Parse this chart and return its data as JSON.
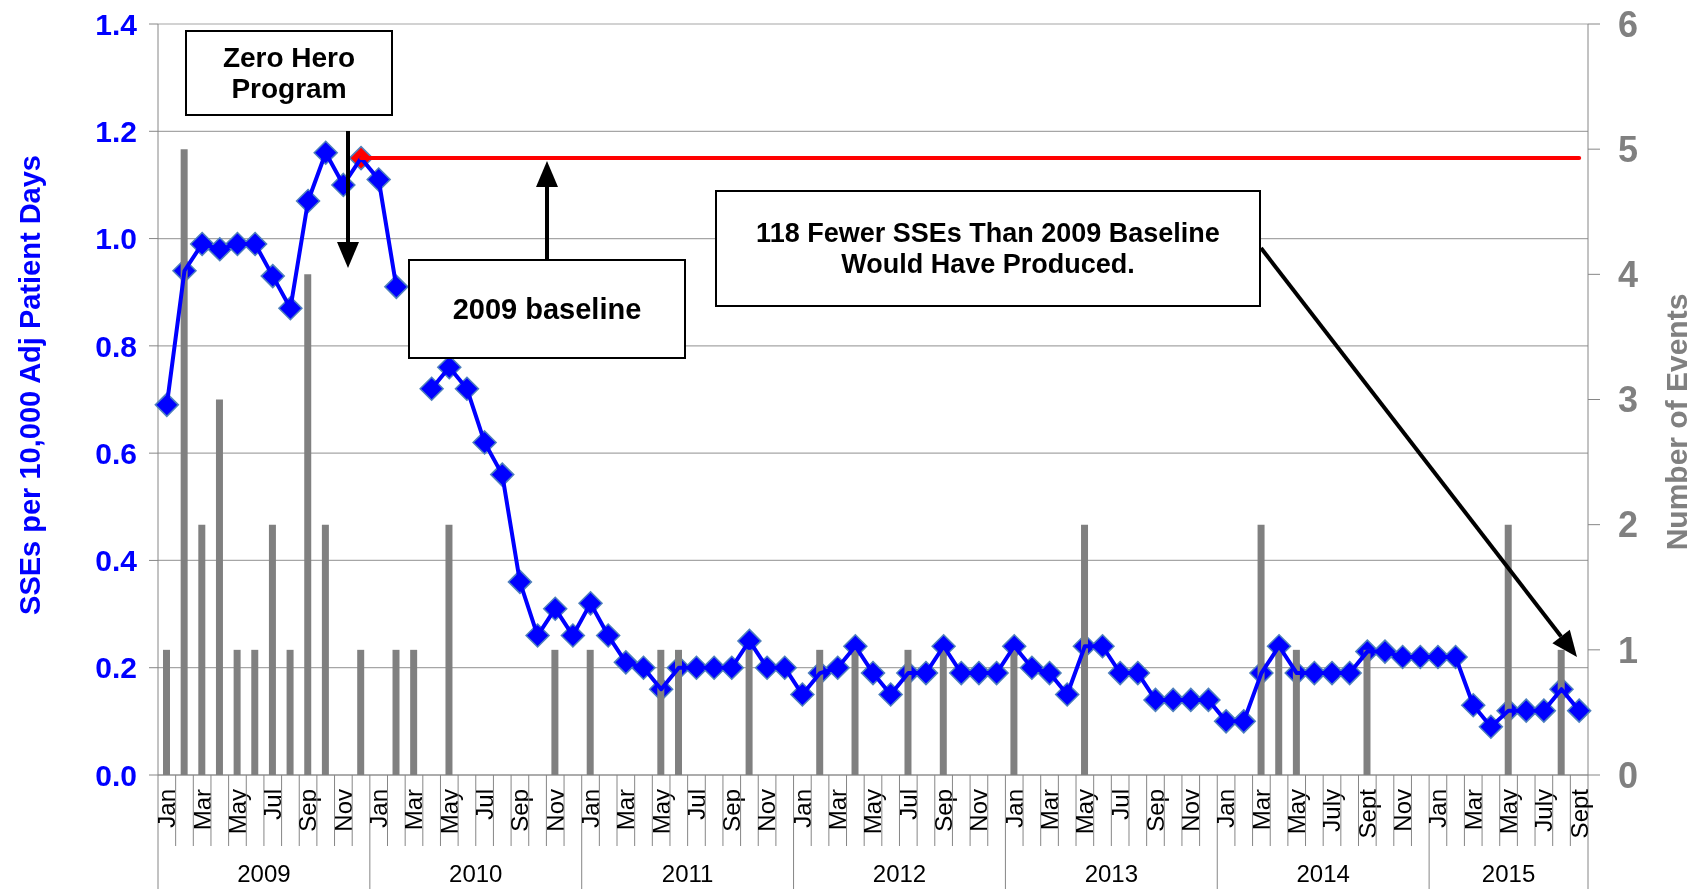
{
  "chart_data": {
    "type": "line",
    "ylabel": "SSEs per 10,000 Adj Patient Days",
    "y2label": "Number of Events",
    "annotations": [
      "Zero Hero Program",
      "2009 baseline",
      "118 Fewer SSEs Than 2009 Baseline Would Have Produced.",
      "2009",
      "2010",
      "2011",
      "2012",
      "2013",
      "2014",
      "2015"
    ],
    "categories": [
      "Jan",
      null,
      "Mar",
      null,
      "May",
      null,
      "Jul",
      null,
      "Sep",
      null,
      "Nov",
      null,
      "Jan",
      null,
      "Mar",
      null,
      "May",
      null,
      "Jul",
      null,
      "Sep",
      null,
      "Nov",
      null,
      "Jan",
      null,
      "Mar",
      null,
      "May",
      null,
      "Jul",
      null,
      "Sep",
      null,
      "Nov",
      null,
      "Jan",
      null,
      "Mar",
      null,
      "May",
      null,
      "Jul",
      null,
      "Sep",
      null,
      "Nov",
      null,
      "Jan",
      null,
      "Mar",
      null,
      "May",
      null,
      "Jul",
      null,
      "Sep",
      null,
      "Nov",
      null,
      "Jan",
      null,
      "Mar",
      null,
      "May",
      null,
      "July",
      null,
      "Sept",
      null,
      "Nov",
      null,
      "Jan",
      null,
      "Mar",
      null,
      "May",
      null,
      "July",
      null,
      "Sept"
    ],
    "series": [
      {
        "color": "#0000ff",
        "marker": "diamond",
        "colors": [
          "#0000ff",
          "#0000ff",
          "#0000ff",
          "#0000ff",
          "#0000ff",
          "#0000ff",
          "#0000ff",
          "#0000ff",
          "#0000ff",
          "#0000ff",
          "#0000ff",
          "#ff0000",
          "#0000ff",
          "#0000ff",
          null,
          "#0000ff",
          "#0000ff",
          "#0000ff",
          "#0000ff",
          "#0000ff",
          "#0000ff",
          "#0000ff",
          "#0000ff",
          "#0000ff",
          "#0000ff",
          "#0000ff",
          "#0000ff",
          "#0000ff",
          "#0000ff",
          "#0000ff",
          "#0000ff",
          "#0000ff",
          "#0000ff",
          "#0000ff",
          "#0000ff",
          "#0000ff",
          "#0000ff",
          "#0000ff",
          "#0000ff",
          "#0000ff",
          "#0000ff",
          "#0000ff",
          "#0000ff",
          "#0000ff",
          "#0000ff",
          "#0000ff",
          "#0000ff",
          "#0000ff",
          "#0000ff",
          "#0000ff",
          "#0000ff",
          "#0000ff",
          "#0000ff",
          "#0000ff",
          "#0000ff",
          "#0000ff",
          "#0000ff",
          "#0000ff",
          "#0000ff",
          "#0000ff",
          "#0000ff",
          "#0000ff",
          "#0000ff",
          "#0000ff",
          "#0000ff",
          "#0000ff",
          "#0000ff",
          "#0000ff",
          "#0000ff",
          "#0000ff",
          "#0000ff",
          "#0000ff",
          "#0000ff",
          "#0000ff",
          "#0000ff",
          "#0000ff",
          "#0000ff",
          "#0000ff",
          "#0000ff",
          "#0000ff",
          "#0000ff"
        ],
        "values": [
          0.69,
          0.94,
          0.99,
          0.98,
          0.99,
          0.99,
          0.93,
          0.87,
          1.07,
          1.16,
          1.1,
          1.15,
          1.11,
          0.91,
          null,
          0.72,
          0.76,
          0.72,
          0.62,
          0.56,
          0.36,
          0.26,
          0.31,
          0.26,
          0.32,
          0.26,
          0.21,
          0.2,
          0.16,
          0.2,
          0.2,
          0.2,
          0.2,
          0.25,
          0.2,
          0.2,
          0.15,
          0.19,
          0.2,
          0.24,
          0.19,
          0.15,
          0.19,
          0.19,
          0.24,
          0.19,
          0.19,
          0.19,
          0.24,
          0.2,
          0.19,
          0.15,
          0.24,
          0.24,
          0.19,
          0.19,
          0.14,
          0.14,
          0.14,
          0.14,
          0.1,
          0.1,
          0.19,
          0.24,
          0.19,
          0.19,
          0.19,
          0.19,
          0.23,
          0.23,
          0.22,
          0.22,
          0.22,
          0.22,
          0.13,
          0.09,
          0.12,
          0.12,
          0.12,
          0.16,
          0.12
        ]
      },
      {
        "type": "bar",
        "axis": "y2",
        "color": "#808080",
        "values": [
          1,
          5,
          2,
          3,
          1,
          1,
          2,
          1,
          4,
          2,
          0,
          1,
          0,
          1,
          1,
          0,
          2,
          0,
          0,
          0,
          0,
          0,
          1,
          0,
          1,
          0,
          0,
          0,
          1,
          1,
          0,
          0,
          0,
          1,
          0,
          0,
          0,
          1,
          0,
          1,
          0,
          0,
          1,
          0,
          1,
          0,
          0,
          0,
          1,
          0,
          0,
          0,
          2,
          0,
          0,
          0,
          0,
          0,
          0,
          0,
          0,
          0,
          2,
          1,
          1,
          0,
          0,
          0,
          1,
          0,
          0,
          0,
          0,
          0,
          0,
          0,
          2,
          0,
          0,
          1,
          0
        ]
      },
      {
        "color": "#ff0000",
        "marker": "none",
        "values": [
          null,
          null,
          null,
          null,
          null,
          null,
          null,
          null,
          null,
          null,
          null,
          1.15,
          1.15,
          1.15,
          1.15,
          1.15,
          1.15,
          1.15,
          1.15,
          1.15,
          1.15,
          1.15,
          1.15,
          1.15,
          1.15,
          1.15,
          1.15,
          1.15,
          1.15,
          1.15,
          1.15,
          1.15,
          1.15,
          1.15,
          1.15,
          1.15,
          1.15,
          1.15,
          1.15,
          1.15,
          1.15,
          1.15,
          1.15,
          1.15,
          1.15,
          1.15,
          1.15,
          1.15,
          1.15,
          1.15,
          1.15,
          1.15,
          1.15,
          1.15,
          1.15,
          1.15,
          1.15,
          1.15,
          1.15,
          1.15,
          1.15,
          1.15,
          1.15,
          1.15,
          1.15,
          1.15,
          1.15,
          1.15,
          1.15,
          1.15,
          1.15,
          1.15,
          1.15,
          1.15,
          1.15,
          1.15,
          1.15,
          1.15,
          1.15,
          1.15,
          1.15
        ]
      }
    ],
    "ylim": [
      0,
      1.4
    ],
    "yticks": [
      {
        "value": 0,
        "label": "0.0"
      },
      0.2,
      0.4,
      0.6,
      0.8,
      {
        "value": 1,
        "label": "1.0"
      },
      1.2,
      1.4
    ],
    "y2lim": [
      0,
      6
    ],
    "y2ticks": [
      0,
      1,
      2,
      3,
      4,
      5,
      6
    ],
    "grid": "y"
  }
}
